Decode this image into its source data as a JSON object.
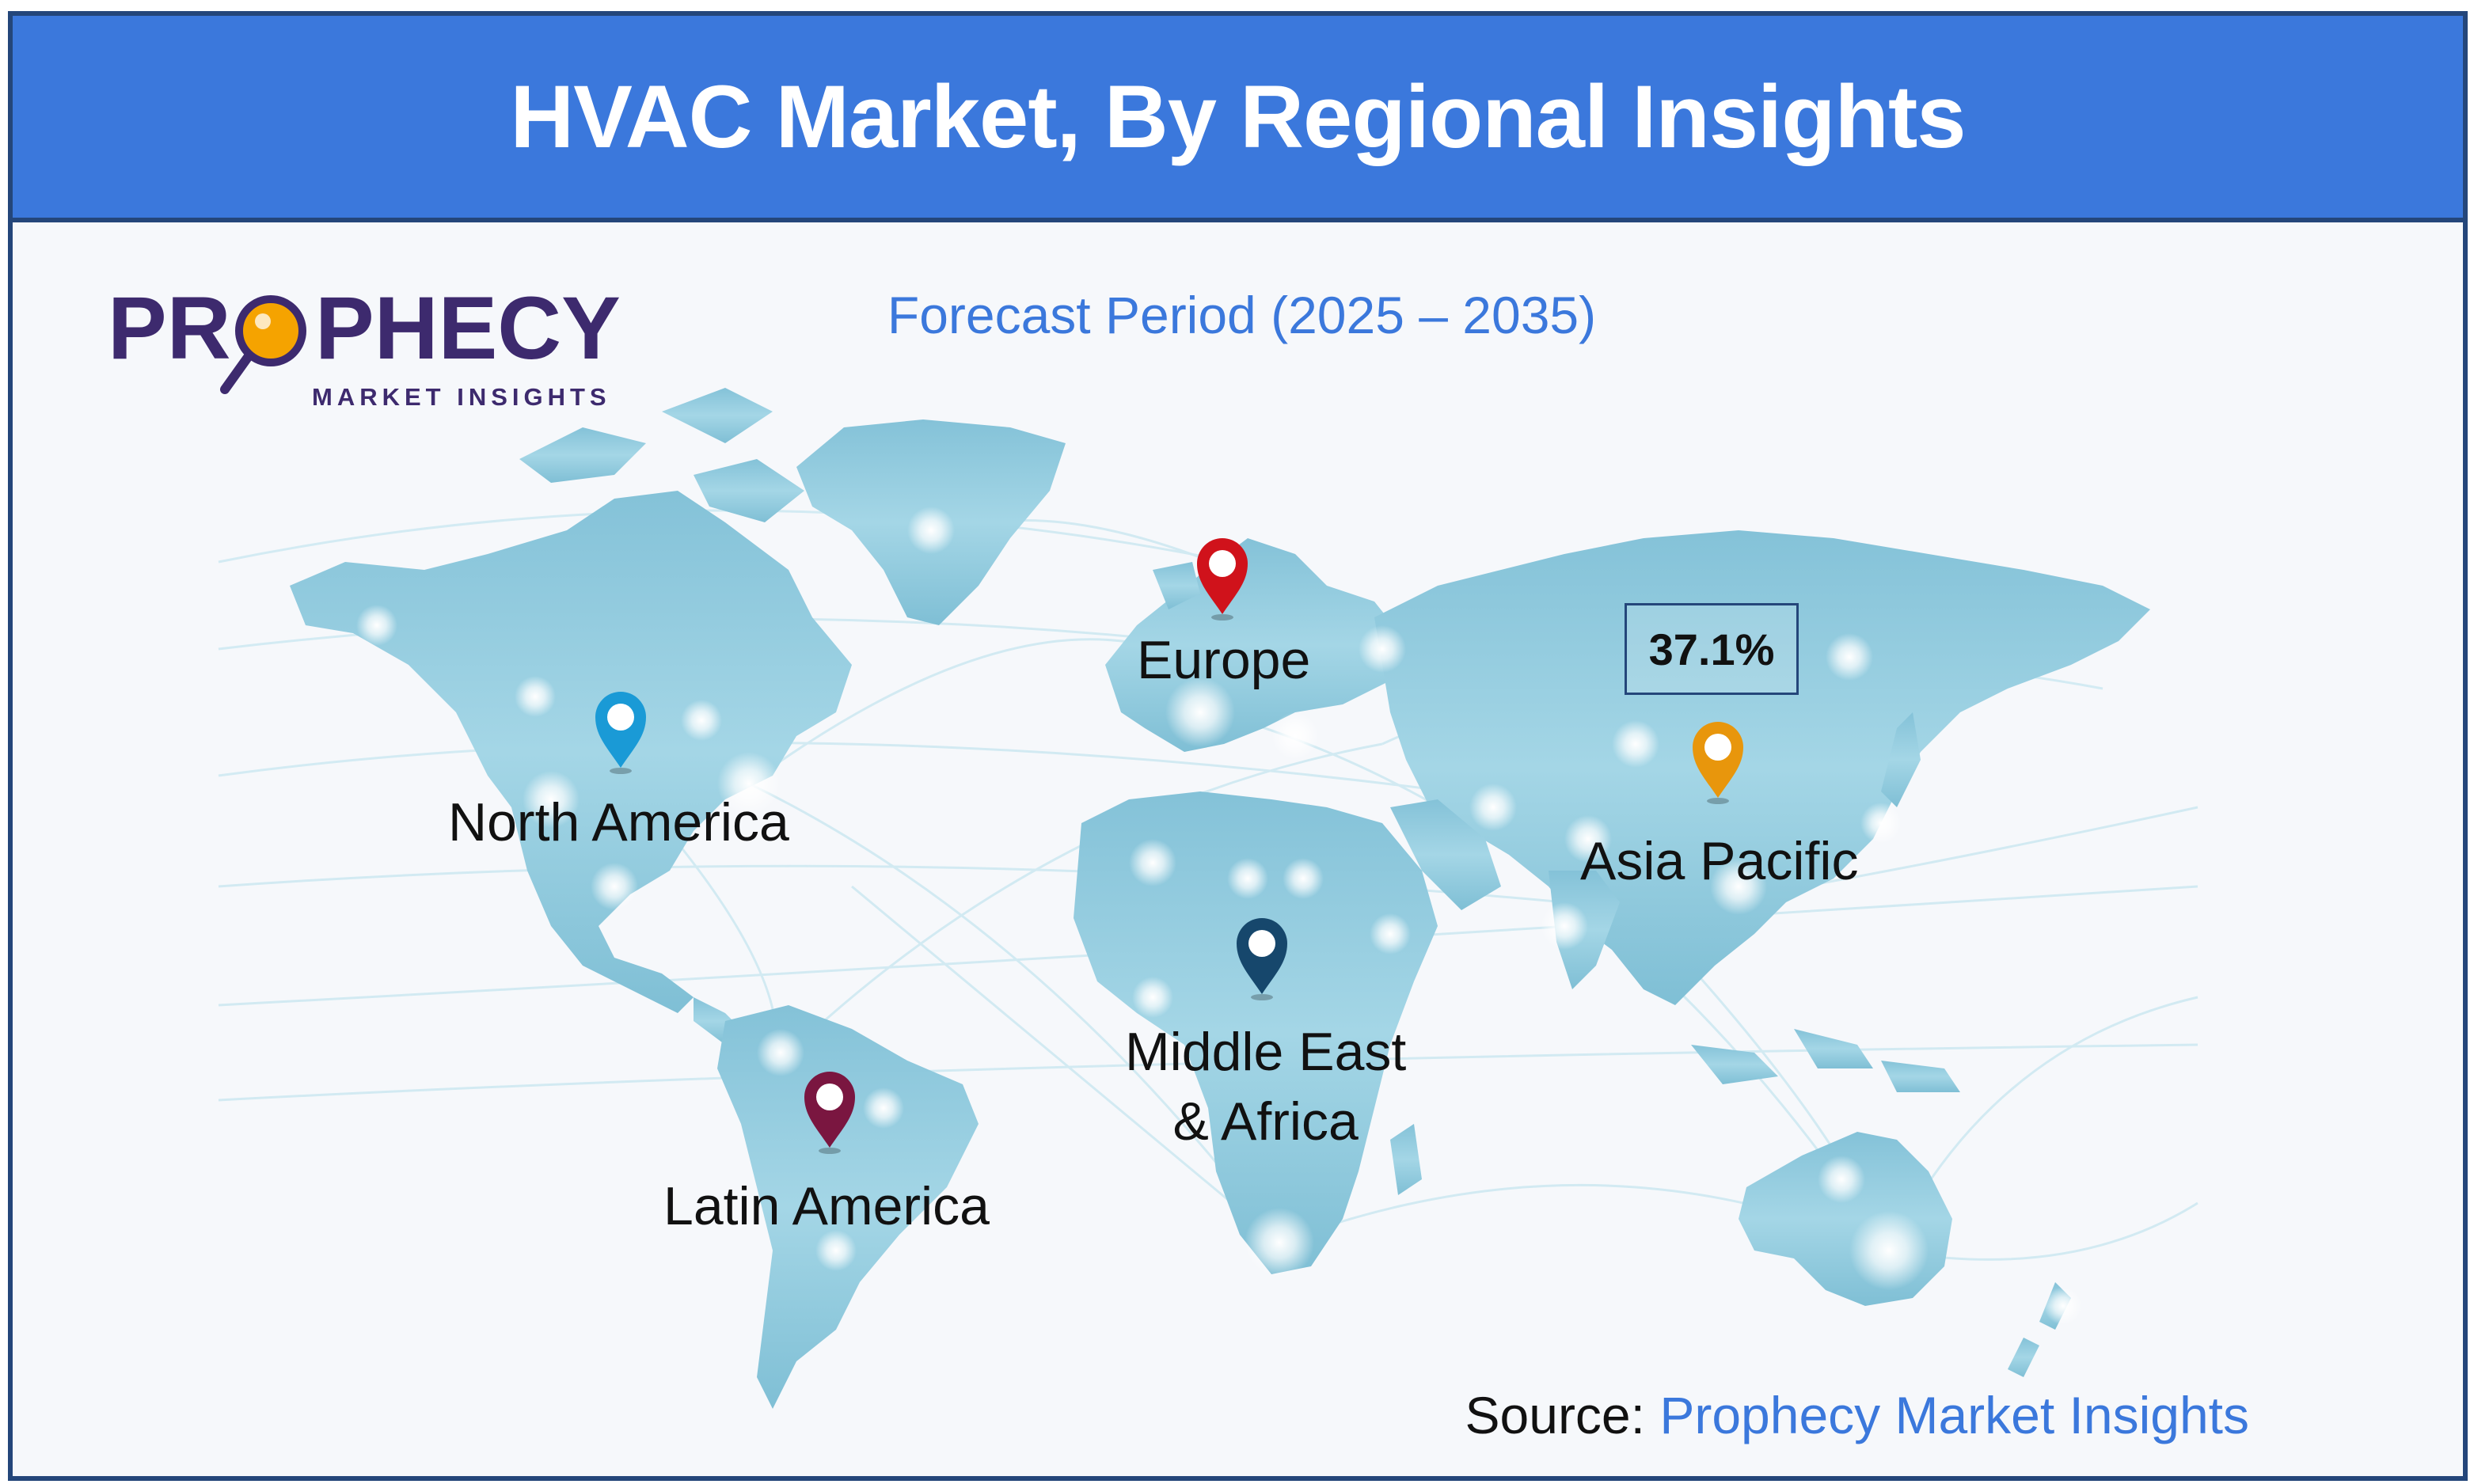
{
  "header": {
    "title": "HVAC Market, By Regional Insights"
  },
  "logo": {
    "wordmark": "PROPHECY",
    "tagline": "MARKET INSIGHTS",
    "brand_color": "#3d2a6e",
    "accent_color": "#f5a300"
  },
  "subtitle": "Forecast Period (2025 – 2035)",
  "regions": [
    {
      "name": "North America",
      "pin_color": "#1a9ad6"
    },
    {
      "name": "Europe",
      "pin_color": "#d0121b"
    },
    {
      "name": "Asia Pacific",
      "pin_color": "#e8960c"
    },
    {
      "name": "Middle East & Africa",
      "line1": "Middle East",
      "line2": "& Africa",
      "pin_color": "#16476c"
    },
    {
      "name": "Latin America",
      "pin_color": "#7a1640"
    }
  ],
  "highlight": {
    "region": "Asia Pacific",
    "share": "37.1%"
  },
  "source": {
    "label": "Source:",
    "value": "Prophecy Market Insights"
  },
  "colors": {
    "header_bg": "#3b78dc",
    "frame_border": "#24467a",
    "map_fill": "#8ec9dd",
    "accent_text": "#3b78dc"
  }
}
